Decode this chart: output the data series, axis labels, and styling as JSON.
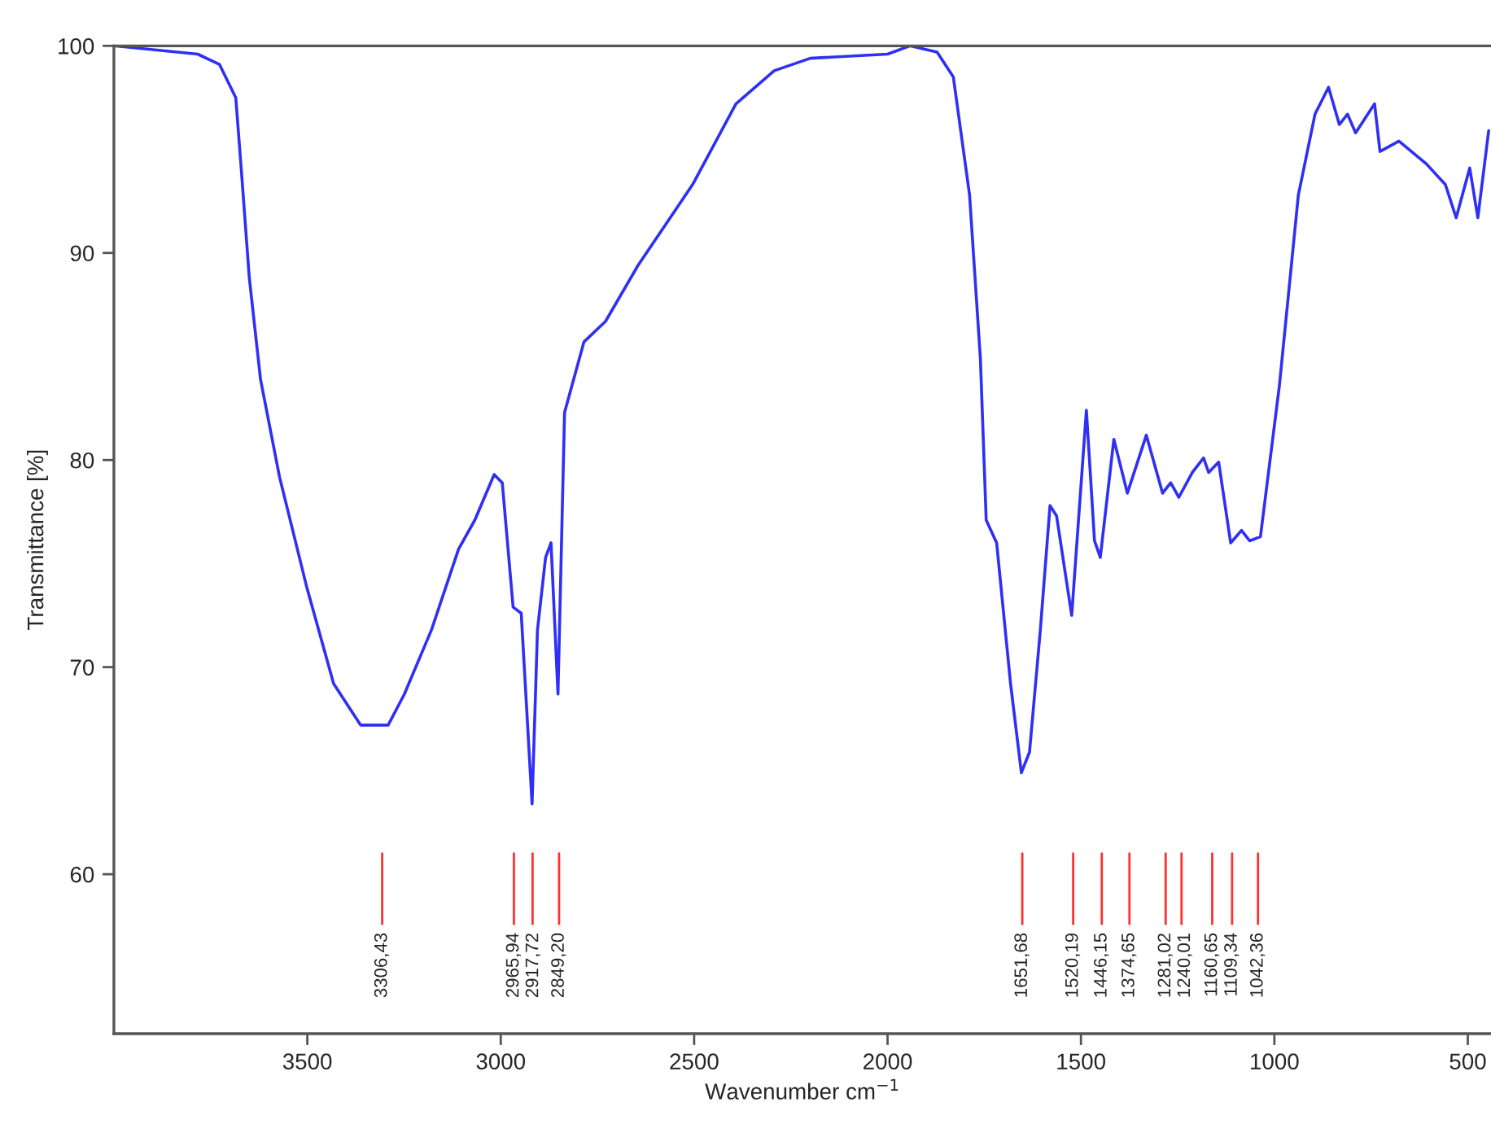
{
  "chart_data": {
    "type": "line",
    "xlabel": "Wavenumber cm$^{−1}$",
    "ylabel": "Transmittance [%]",
    "x": [
      4000,
      3783,
      3727,
      3685,
      3671,
      3650,
      3621,
      3572,
      3502,
      3432,
      3362,
      3291,
      3249,
      3179,
      3109,
      3067,
      3017,
      2996,
      2968,
      2947,
      2919,
      2905,
      2884,
      2870,
      2852,
      2835,
      2785,
      2729,
      2645,
      2504,
      2392,
      2293,
      2200,
      2000,
      1942,
      1872,
      1830,
      1788,
      1760,
      1745,
      1718,
      1682,
      1654,
      1633,
      1605,
      1580,
      1563,
      1524,
      1486,
      1465,
      1450,
      1415,
      1380,
      1331,
      1289,
      1268,
      1247,
      1212,
      1183,
      1170,
      1144,
      1113,
      1085,
      1064,
      1036,
      987,
      938,
      895,
      860,
      832,
      811,
      790,
      741,
      727,
      678,
      607,
      558,
      530,
      495,
      474,
      446
    ],
    "series": [
      {
        "color": "#2f2ff5",
        "values": [
          100.0,
          99.6,
          99.1,
          97.5,
          94.1,
          88.8,
          83.9,
          79.2,
          73.9,
          69.2,
          67.2,
          67.2,
          68.7,
          71.8,
          75.7,
          77.1,
          79.3,
          78.9,
          72.9,
          72.6,
          63.4,
          71.8,
          75.3,
          76.0,
          68.7,
          82.3,
          85.7,
          86.7,
          89.4,
          93.3,
          97.2,
          98.8,
          99.4,
          99.6,
          100.0,
          99.7,
          98.5,
          92.8,
          84.9,
          77.1,
          76.0,
          69.2,
          64.9,
          65.9,
          71.8,
          77.8,
          77.3,
          72.5,
          82.4,
          76.1,
          75.3,
          81.0,
          78.4,
          81.2,
          78.4,
          78.9,
          78.2,
          79.4,
          80.1,
          79.4,
          79.9,
          76.0,
          76.6,
          76.1,
          76.3,
          83.6,
          92.8,
          96.7,
          98.0,
          96.2,
          96.7,
          95.8,
          97.2,
          94.9,
          95.4,
          94.3,
          93.3,
          91.7,
          94.1,
          91.7,
          95.9
        ]
      }
    ],
    "xlim": [
      4000,
      440
    ],
    "ylim": [
      52.3,
      100
    ],
    "xticks": [
      3500,
      3000,
      2500,
      2000,
      1500,
      1000,
      500
    ],
    "yticks": [
      60,
      70,
      80,
      90,
      100
    ],
    "ref_lines": [
      {
        "axis": "x",
        "value": 3306.43,
        "label": "3306,43",
        "color": "#ff3030"
      },
      {
        "axis": "x",
        "value": 2965.94,
        "label": "2965,94",
        "color": "#ff3030"
      },
      {
        "axis": "x",
        "value": 2917.72,
        "label": "2917,72",
        "color": "#ff3030"
      },
      {
        "axis": "x",
        "value": 2849.2,
        "label": "2849,20",
        "color": "#ff3030"
      },
      {
        "axis": "x",
        "value": 1651.68,
        "label": "1651,68",
        "color": "#ff3030"
      },
      {
        "axis": "x",
        "value": 1520.19,
        "label": "1520,19",
        "color": "#ff3030"
      },
      {
        "axis": "x",
        "value": 1446.15,
        "label": "1446,15",
        "color": "#ff3030"
      },
      {
        "axis": "x",
        "value": 1374.65,
        "label": "1374,65",
        "color": "#ff3030"
      },
      {
        "axis": "x",
        "value": 1281.02,
        "label": "1281,02",
        "color": "#ff3030"
      },
      {
        "axis": "x",
        "value": 1240.01,
        "label": "1240,01",
        "color": "#ff3030"
      },
      {
        "axis": "x",
        "value": 1160.65,
        "label": "1160,65",
        "color": "#ff3030"
      },
      {
        "axis": "x",
        "value": 1109.34,
        "label": "1109,34",
        "color": "#ff3030"
      },
      {
        "axis": "x",
        "value": 1042.36,
        "label": "1042,36",
        "color": "#ff3030"
      }
    ]
  }
}
